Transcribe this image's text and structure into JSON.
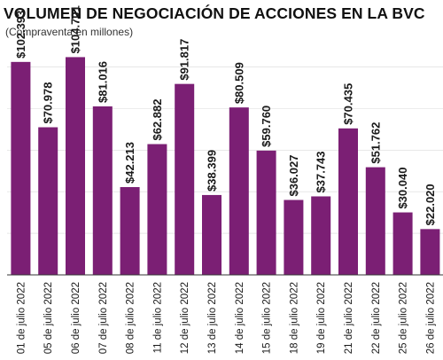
{
  "colors": {
    "bar": "#7b1f74",
    "baseline": "#333333",
    "grid": "#d9d9d9"
  },
  "chart_data": {
    "type": "bar",
    "title": "VOLUMEN DE NEGOCIACIÓN DE ACCIONES EN LA BVC",
    "subtitle": "(Compraventa en millones)",
    "xlabel": "",
    "ylabel": "",
    "ylim": [
      0,
      110000
    ],
    "grid": true,
    "legend": "none",
    "categories": [
      "01 de julio 2022",
      "05 de julio 2022",
      "06 de julio 2022",
      "07 de julio 2022",
      "08 de julio 2022",
      "11 de julio 2022",
      "12 de julio 2022",
      "13 de julio 2022",
      "14 de julio 2022",
      "15 de julio 2022",
      "18 de julio 2022",
      "19 de julio 2022",
      "21 de julio 2022",
      "22 de julio 2022",
      "25 de julio 2022",
      "26 de julio 2022"
    ],
    "values": [
      102393,
      70978,
      104701,
      81016,
      42213,
      62882,
      91817,
      38399,
      80509,
      59760,
      36027,
      37743,
      70435,
      51762,
      30040,
      22020
    ],
    "data_labels": [
      "$102.393",
      "$70.978",
      "$104.701",
      "$81.016",
      "$42.213",
      "$62.882",
      "$91.817",
      "$38.399",
      "$80.509",
      "$59.760",
      "$36.027",
      "$37.743",
      "$70.435",
      "$51.762",
      "$30.040",
      "$22.020"
    ]
  }
}
